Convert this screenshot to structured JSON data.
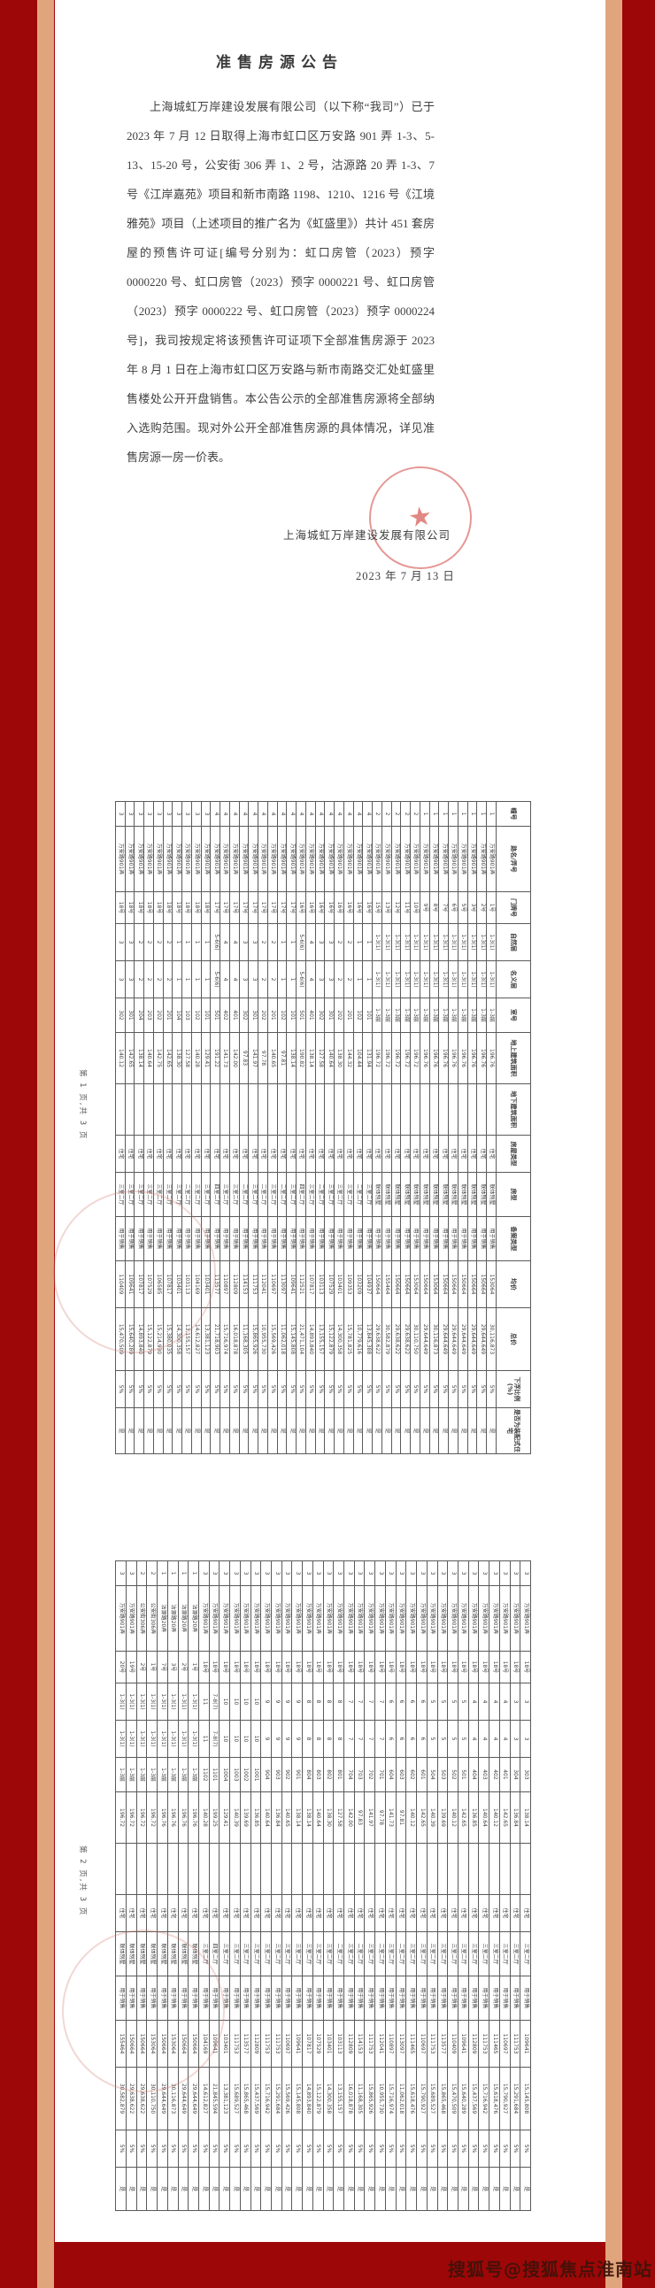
{
  "announcement": {
    "title": "准售房源公告",
    "body": "上海城虹万岸建设发展有限公司（以下称“我司”）已于 2023 年 7 月 12 日取得上海市虹口区万安路 901 弄 1-3、5-13、15-20 号，公安街 306 弄 1、2 号，沽源路 20 弄 1-3、7 号《江岸嘉苑》项目和新市南路 1198、1210、1216 号《江境雅苑》项目（上述项目的推广名为《虹盛里》）共计 451 套房屋的预售许可证[编号分别为：虹口房管（2023）预字 0000220 号、虹口房管（2023）预字 0000221 号、虹口房管（2023）预字 0000222 号、虹口房管（2023）预字 0000224 号]，我司按规定将该预售许可证项下全部准售房源于 2023 年 8 月 1 日在上海市虹口区万安路与新市南路交汇处虹盛里售楼处公开开盘销售。本公告公示的全部准售房源将全部纳入选购范围。现对外公开全部准售房源的具体情况，详见准售房源一房一价表。",
    "company": "上海城虹万岸建设发展有限公司",
    "date": "2023 年 7 月 13 日"
  },
  "footers": {
    "page1": "第 1 页,共 3 页",
    "page2": "第 2 页,共 3 页"
  },
  "watermark": "搜狐号@搜狐焦点淮南站",
  "seal_star": "★",
  "colors": {
    "background": "#9e0707",
    "side_band": "#e0a57c",
    "page": "#ffffff",
    "text": "#3f3f3f",
    "seal_red": "#d8605a"
  },
  "table_columns": [
    "幢号",
    "路名/弄号",
    "门牌号",
    "自然层",
    "名义层",
    "室号",
    "地上建筑面积",
    "地下建筑面积",
    "房屋类型",
    "房型",
    "备案类型",
    "均价",
    "总价",
    "下浮比例(%)",
    "是否为装配式住宅"
  ],
  "table1_rows": [
    [
      "1",
      "万安路901弄",
      "1号",
      "1-3(1)",
      "1-3(1)",
      "1-3层",
      "196.76",
      "",
      "住宅",
      "联体别墅",
      "用于销售",
      "153064",
      "30,116,873",
      "5%",
      "是"
    ],
    [
      "1",
      "万安路901弄",
      "2号",
      "1-3(1)",
      "1-3(1)",
      "1-3层",
      "196.76",
      "",
      "住宅",
      "联体别墅",
      "用于销售",
      "150664",
      "29,644,649",
      "5%",
      "是"
    ],
    [
      "1",
      "万安路901弄",
      "3号",
      "1-3(1)",
      "1-3(1)",
      "1-3层",
      "196.76",
      "",
      "住宅",
      "联体别墅",
      "用于销售",
      "150664",
      "29,644,649",
      "5%",
      "是"
    ],
    [
      "1",
      "万安路901弄",
      "5号",
      "1-3(1)",
      "1-3(1)",
      "1-3层",
      "196.76",
      "",
      "住宅",
      "联体别墅",
      "用于销售",
      "150664",
      "29,644,649",
      "5%",
      "是"
    ],
    [
      "1",
      "万安路901弄",
      "6号",
      "1-3(1)",
      "1-3(1)",
      "1-3层",
      "196.76",
      "",
      "住宅",
      "联体别墅",
      "用于销售",
      "150664",
      "29,644,649",
      "5%",
      "是"
    ],
    [
      "1",
      "万安路901弄",
      "7号",
      "1-3(1)",
      "1-3(1)",
      "1-3层",
      "196.76",
      "",
      "住宅",
      "联体别墅",
      "用于销售",
      "150664",
      "29,644,649",
      "5%",
      "是"
    ],
    [
      "1",
      "万安路901弄",
      "8号",
      "1-3(1)",
      "1-3(1)",
      "1-3层",
      "196.76",
      "",
      "住宅",
      "联体别墅",
      "用于销售",
      "153064",
      "30,116,873",
      "5%",
      "是"
    ],
    [
      "1",
      "万安路901弄",
      "9号",
      "1-3(1)",
      "1-3(1)",
      "1-3层",
      "196.76",
      "",
      "住宅",
      "联体别墅",
      "用于销售",
      "150664",
      "29,644,649",
      "5%",
      "是"
    ],
    [
      "2",
      "万安路901弄",
      "10号",
      "1-3(1)",
      "1-3(1)",
      "1-3层",
      "196.72",
      "",
      "住宅",
      "联体别墅",
      "用于销售",
      "153064",
      "30,110,750",
      "5%",
      "是"
    ],
    [
      "2",
      "万安路901弄",
      "11号",
      "1-3(1)",
      "1-3(1)",
      "1-3层",
      "196.72",
      "",
      "住宅",
      "联体别墅",
      "用于销售",
      "150664",
      "29,638,622",
      "5%",
      "是"
    ],
    [
      "2",
      "万安路901弄",
      "12号",
      "1-3(1)",
      "1-3(1)",
      "1-3层",
      "196.72",
      "",
      "住宅",
      "联体别墅",
      "用于销售",
      "150664",
      "29,638,622",
      "5%",
      "是"
    ],
    [
      "2",
      "万安路901弄",
      "13号",
      "1-3(1)",
      "1-3(1)",
      "1-3层",
      "196.72",
      "",
      "住宅",
      "联体别墅",
      "用于销售",
      "155464",
      "30,582,879",
      "5%",
      "是"
    ],
    [
      "2",
      "万安路901弄",
      "15号",
      "1-3(1)",
      "1-3(1)",
      "1-3层",
      "196.72",
      "",
      "住宅",
      "联体别墅",
      "用于销售",
      "150664",
      "29,638,622",
      "5%",
      "是"
    ],
    [
      "4",
      "万安路901弄",
      "16号",
      "1",
      "1",
      "101",
      "131.94",
      "",
      "住宅",
      "三室二厅",
      "用于销售",
      "104937",
      "13,845,388",
      "5%",
      "是"
    ],
    [
      "4",
      "万安路901弄",
      "16号",
      "1",
      "1",
      "102",
      "104.44",
      "",
      "住宅",
      "二室二厅",
      "用于销售",
      "103209",
      "10,779,616",
      "5%",
      "是"
    ],
    [
      "4",
      "万安路901弄",
      "16号",
      "2",
      "2",
      "201",
      "144.32",
      "",
      "住宅",
      "三室二厅",
      "用于销售",
      "109353",
      "15,781,825",
      "5%",
      "是"
    ],
    [
      "4",
      "万安路901弄",
      "16号",
      "2",
      "2",
      "202",
      "138.30",
      "",
      "住宅",
      "三室二厅",
      "用于销售",
      "103401",
      "14,300,358",
      "5%",
      "是"
    ],
    [
      "4",
      "万安路901弄",
      "16号",
      "3",
      "3",
      "301",
      "140.64",
      "",
      "住宅",
      "三室二厅",
      "用于销售",
      "107529",
      "15,122,879",
      "5%",
      "是"
    ],
    [
      "4",
      "万安路901弄",
      "16号",
      "3",
      "3",
      "302",
      "127.58",
      "",
      "住宅",
      "二室二厅",
      "用于销售",
      "103113",
      "13,155,157",
      "5%",
      "是"
    ],
    [
      "4",
      "万安路901弄",
      "16号",
      "4",
      "4",
      "401",
      "138.14",
      "",
      "住宅",
      "三室二厅",
      "用于销售",
      "107817",
      "14,893,840",
      "5%",
      "是"
    ],
    [
      "4",
      "万安路901弄",
      "16号",
      "5-6(6)",
      "5-6(6)",
      "501",
      "190.82",
      "",
      "住宅",
      "四室二厅",
      "用于销售",
      "112521",
      "21,471,104",
      "5%",
      "是"
    ],
    [
      "4",
      "万安路901弄",
      "17号",
      "1",
      "1",
      "101",
      "138.14",
      "",
      "住宅",
      "三室二厅",
      "用于销售",
      "109641",
      "15,145,808",
      "5%",
      "是"
    ],
    [
      "4",
      "万安路901弄",
      "17号",
      "1",
      "1",
      "102",
      "97.81",
      "",
      "住宅",
      "二室二厅",
      "用于销售",
      "113097",
      "11,062,018",
      "5%",
      "是"
    ],
    [
      "4",
      "万安路901弄",
      "17号",
      "2",
      "2",
      "201",
      "140.65",
      "",
      "住宅",
      "三室二厅",
      "用于销售",
      "110697",
      "15,569,426",
      "5%",
      "是"
    ],
    [
      "4",
      "万安路901弄",
      "17号",
      "2",
      "2",
      "202",
      "97.78",
      "",
      "住宅",
      "二室二厅",
      "用于销售",
      "112041",
      "10,955,730",
      "5%",
      "是"
    ],
    [
      "4",
      "万安路901弄",
      "17号",
      "3",
      "3",
      "301",
      "141.97",
      "",
      "住宅",
      "三室二厅",
      "用于销售",
      "111753",
      "15,865,926",
      "5%",
      "是"
    ],
    [
      "4",
      "万安路901弄",
      "17号",
      "3",
      "3",
      "302",
      "97.83",
      "",
      "住宅",
      "二室二厅",
      "用于销售",
      "114153",
      "11,168,305",
      "5%",
      "是"
    ],
    [
      "4",
      "万安路901弄",
      "17号",
      "4",
      "4",
      "401",
      "142.00",
      "",
      "住宅",
      "三室二厅",
      "用于销售",
      "112809",
      "16,018,878",
      "5%",
      "是"
    ],
    [
      "4",
      "万安路901弄",
      "17号",
      "4",
      "4",
      "402",
      "141.73",
      "",
      "住宅",
      "三室二厅",
      "用于销售",
      "110897",
      "15,716,974",
      "5%",
      "是"
    ],
    [
      "4",
      "万安路901弄",
      "17号",
      "5-6(6)",
      "5-6(6)",
      "501",
      "191.22",
      "",
      "住宅",
      "四室二厅",
      "用于销售",
      "113577",
      "21,718,903",
      "5%",
      "是"
    ],
    [
      "3",
      "万安路901弄",
      "18号",
      "1",
      "1",
      "101",
      "129.41",
      "",
      "住宅",
      "三室二厅",
      "用于销售",
      "103401",
      "13,381,123",
      "5%",
      "是"
    ],
    [
      "3",
      "万安路901弄",
      "18号",
      "1",
      "1",
      "102",
      "140.28",
      "",
      "住宅",
      "三室二厅",
      "用于销售",
      "104169",
      "14,612,827",
      "5%",
      "是"
    ],
    [
      "3",
      "万安路901弄",
      "18号",
      "1",
      "1",
      "103",
      "127.58",
      "",
      "住宅",
      "二室二厅",
      "用于销售",
      "103113",
      "13,155,157",
      "5%",
      "是"
    ],
    [
      "3",
      "万安路901弄",
      "18号",
      "1",
      "1",
      "104",
      "138.30",
      "",
      "住宅",
      "三室二厅",
      "用于销售",
      "103401",
      "14,300,358",
      "5%",
      "是"
    ],
    [
      "3",
      "万安路901弄",
      "18号",
      "2",
      "2",
      "201",
      "142.65",
      "",
      "住宅",
      "三室二厅",
      "用于销售",
      "107817",
      "15,380,035",
      "5%",
      "是"
    ],
    [
      "3",
      "万安路901弄",
      "18号",
      "2",
      "2",
      "202",
      "142.75",
      "",
      "住宅",
      "三室二厅",
      "用于销售",
      "106585",
      "15,214,930",
      "5%",
      "是"
    ],
    [
      "3",
      "万安路901弄",
      "18号",
      "2",
      "2",
      "203",
      "140.64",
      "",
      "住宅",
      "三室二厅",
      "用于销售",
      "107529",
      "15,122,879",
      "5%",
      "是"
    ],
    [
      "3",
      "万安路901弄",
      "18号",
      "2",
      "2",
      "204",
      "138.14",
      "",
      "住宅",
      "三室二厅",
      "用于销售",
      "107817",
      "14,893,840",
      "5%",
      "是"
    ],
    [
      "3",
      "万安路901弄",
      "18号",
      "3",
      "3",
      "301",
      "142.65",
      "",
      "住宅",
      "三室二厅",
      "用于销售",
      "109641",
      "15,640,289",
      "5%",
      "是"
    ],
    [
      "3",
      "万安路901弄",
      "18号",
      "3",
      "3",
      "302",
      "140.12",
      "",
      "住宅",
      "三室二厅",
      "用于销售",
      "110409",
      "15,470,509",
      "5%",
      "是"
    ]
  ],
  "table2_rows": [
    [
      "3",
      "万安路901弄",
      "18号",
      "3",
      "3",
      "303",
      "138.14",
      "",
      "住宅",
      "三室二厅",
      "用于销售",
      "109641",
      "15,145,808",
      "5%",
      "是"
    ],
    [
      "3",
      "万安路901弄",
      "18号",
      "3",
      "3",
      "304",
      "136.84",
      "",
      "住宅",
      "三室二厅",
      "用于销售",
      "111753",
      "15,291,684",
      "5%",
      "是"
    ],
    [
      "3",
      "万安路901弄",
      "18号",
      "4",
      "4",
      "401",
      "142.65",
      "",
      "住宅",
      "三室二厅",
      "用于销售",
      "110697",
      "15,790,927",
      "5%",
      "是"
    ],
    [
      "3",
      "万安路901弄",
      "18号",
      "4",
      "4",
      "402",
      "140.12",
      "",
      "住宅",
      "三室二厅",
      "用于销售",
      "111465",
      "15,618,476",
      "5%",
      "是"
    ],
    [
      "3",
      "万安路901弄",
      "18号",
      "4",
      "4",
      "403",
      "140.64",
      "",
      "住宅",
      "三室二厅",
      "用于销售",
      "111753",
      "15,716,942",
      "5%",
      "是"
    ],
    [
      "3",
      "万安路901弄",
      "18号",
      "4",
      "4",
      "404",
      "136.85",
      "",
      "住宅",
      "三室二厅",
      "用于销售",
      "112809",
      "15,437,569",
      "5%",
      "是"
    ],
    [
      "3",
      "万安路901弄",
      "18号",
      "5",
      "5",
      "501",
      "142.65",
      "",
      "住宅",
      "三室二厅",
      "用于销售",
      "109641",
      "15,640,289",
      "5%",
      "是"
    ],
    [
      "3",
      "万安路901弄",
      "18号",
      "5",
      "5",
      "502",
      "140.12",
      "",
      "住宅",
      "三室二厅",
      "用于销售",
      "110409",
      "15,470,509",
      "5%",
      "是"
    ],
    [
      "3",
      "万安路901弄",
      "18号",
      "5",
      "5",
      "503",
      "139.69",
      "",
      "住宅",
      "三室二厅",
      "用于销售",
      "113577",
      "15,865,468",
      "5%",
      "是"
    ],
    [
      "3",
      "万安路901弄",
      "18号",
      "5",
      "5",
      "504",
      "140.39",
      "",
      "住宅",
      "三室二厅",
      "用于销售",
      "111753",
      "15,689,527",
      "5%",
      "是"
    ],
    [
      "3",
      "万安路901弄",
      "18号",
      "6",
      "6",
      "601",
      "142.65",
      "",
      "住宅",
      "三室二厅",
      "用于销售",
      "110697",
      "15,790,927",
      "5%",
      "是"
    ],
    [
      "3",
      "万安路901弄",
      "18号",
      "6",
      "6",
      "602",
      "140.12",
      "",
      "住宅",
      "三室二厅",
      "用于销售",
      "111465",
      "15,618,476",
      "5%",
      "是"
    ],
    [
      "3",
      "万安路901弄",
      "18号",
      "6",
      "6",
      "603",
      "97.81",
      "",
      "住宅",
      "二室二厅",
      "用于销售",
      "113097",
      "11,062,018",
      "5%",
      "是"
    ],
    [
      "3",
      "万安路901弄",
      "18号",
      "6",
      "6",
      "604",
      "141.73",
      "",
      "住宅",
      "三室二厅",
      "用于销售",
      "110897",
      "15,716,974",
      "5%",
      "是"
    ],
    [
      "3",
      "万安路901弄",
      "18号",
      "7",
      "7",
      "701",
      "97.78",
      "",
      "住宅",
      "二室二厅",
      "用于销售",
      "112041",
      "10,955,730",
      "5%",
      "是"
    ],
    [
      "3",
      "万安路901弄",
      "18号",
      "7",
      "7",
      "702",
      "141.97",
      "",
      "住宅",
      "三室二厅",
      "用于销售",
      "111753",
      "15,865,926",
      "5%",
      "是"
    ],
    [
      "3",
      "万安路901弄",
      "18号",
      "7",
      "7",
      "703",
      "97.83",
      "",
      "住宅",
      "二室二厅",
      "用于销售",
      "114153",
      "11,168,305",
      "5%",
      "是"
    ],
    [
      "3",
      "万安路901弄",
      "18号",
      "7",
      "7",
      "704",
      "142.00",
      "",
      "住宅",
      "三室二厅",
      "用于销售",
      "112809",
      "16,018,878",
      "5%",
      "是"
    ],
    [
      "3",
      "万安路901弄",
      "18号",
      "8",
      "8",
      "801",
      "127.58",
      "",
      "住宅",
      "二室二厅",
      "用于销售",
      "103113",
      "13,155,157",
      "5%",
      "是"
    ],
    [
      "3",
      "万安路901弄",
      "18号",
      "8",
      "8",
      "802",
      "138.30",
      "",
      "住宅",
      "三室二厅",
      "用于销售",
      "103401",
      "14,300,358",
      "5%",
      "是"
    ],
    [
      "3",
      "万安路901弄",
      "18号",
      "8",
      "8",
      "803",
      "140.64",
      "",
      "住宅",
      "三室二厅",
      "用于销售",
      "107529",
      "15,122,879",
      "5%",
      "是"
    ],
    [
      "3",
      "万安路901弄",
      "18号",
      "8",
      "8",
      "804",
      "138.14",
      "",
      "住宅",
      "三室二厅",
      "用于销售",
      "107817",
      "14,893,840",
      "5%",
      "是"
    ],
    [
      "3",
      "万安路901弄",
      "18号",
      "9",
      "9",
      "901",
      "138.14",
      "",
      "住宅",
      "三室二厅",
      "用于销售",
      "109641",
      "15,145,808",
      "5%",
      "是"
    ],
    [
      "3",
      "万安路901弄",
      "18号",
      "9",
      "9",
      "902",
      "140.65",
      "",
      "住宅",
      "三室二厅",
      "用于销售",
      "110697",
      "15,569,426",
      "5%",
      "是"
    ],
    [
      "3",
      "万安路901弄",
      "18号",
      "9",
      "9",
      "903",
      "136.84",
      "",
      "住宅",
      "三室二厅",
      "用于销售",
      "111753",
      "15,291,684",
      "5%",
      "是"
    ],
    [
      "3",
      "万安路901弄",
      "18号",
      "9",
      "9",
      "904",
      "140.64",
      "",
      "住宅",
      "三室二厅",
      "用于销售",
      "111753",
      "15,716,942",
      "5%",
      "是"
    ],
    [
      "3",
      "万安路901弄",
      "18号",
      "10",
      "10",
      "1001",
      "136.85",
      "",
      "住宅",
      "三室二厅",
      "用于销售",
      "112809",
      "15,437,569",
      "5%",
      "是"
    ],
    [
      "3",
      "万安路901弄",
      "18号",
      "10",
      "10",
      "1002",
      "139.69",
      "",
      "住宅",
      "三室二厅",
      "用于销售",
      "113577",
      "15,865,468",
      "5%",
      "是"
    ],
    [
      "3",
      "万安路901弄",
      "18号",
      "10",
      "10",
      "1003",
      "140.39",
      "",
      "住宅",
      "三室二厅",
      "用于销售",
      "111753",
      "15,689,527",
      "5%",
      "是"
    ],
    [
      "3",
      "万安路901弄",
      "18号",
      "10",
      "10",
      "1004",
      "129.41",
      "",
      "住宅",
      "三室二厅",
      "用于销售",
      "103401",
      "13,381,123",
      "5%",
      "是"
    ],
    [
      "3",
      "万安路901弄",
      "18号",
      "7-8(7)",
      "7-8(7)",
      "1101",
      "199.25",
      "",
      "住宅",
      "四室二厅",
      "用于销售",
      "109641",
      "21,845,594",
      "5%",
      "是"
    ],
    [
      "3",
      "万安路901弄",
      "18号",
      "11",
      "11",
      "1102",
      "140.28",
      "",
      "住宅",
      "三室二厅",
      "用于销售",
      "104169",
      "14,612,827",
      "5%",
      "是"
    ],
    [
      "1",
      "沽源路20弄",
      "1号",
      "1-3(1)",
      "1-3(1)",
      "1-3层",
      "196.76",
      "",
      "住宅",
      "联体别墅",
      "用于销售",
      "150664",
      "29,644,649",
      "5%",
      "是"
    ],
    [
      "1",
      "沽源路20弄",
      "2号",
      "1-3(1)",
      "1-3(1)",
      "1-3层",
      "196.76",
      "",
      "住宅",
      "联体别墅",
      "用于销售",
      "150664",
      "29,644,649",
      "5%",
      "是"
    ],
    [
      "1",
      "沽源路20弄",
      "3号",
      "1-3(1)",
      "1-3(1)",
      "1-3层",
      "196.76",
      "",
      "住宅",
      "联体别墅",
      "用于销售",
      "153064",
      "30,116,873",
      "5%",
      "是"
    ],
    [
      "1",
      "沽源路20弄",
      "7号",
      "1-3(1)",
      "1-3(1)",
      "1-3层",
      "196.76",
      "",
      "住宅",
      "联体别墅",
      "用于销售",
      "150664",
      "29,644,649",
      "5%",
      "是"
    ],
    [
      "2",
      "公安街306弄",
      "1号",
      "1-3(1)",
      "1-3(1)",
      "1-3层",
      "196.72",
      "",
      "住宅",
      "联体别墅",
      "用于销售",
      "153064",
      "30,110,750",
      "5%",
      "是"
    ],
    [
      "2",
      "公安街306弄",
      "2号",
      "1-3(1)",
      "1-3(1)",
      "1-3层",
      "196.72",
      "",
      "住宅",
      "联体别墅",
      "用于销售",
      "150664",
      "29,638,622",
      "5%",
      "是"
    ],
    [
      "3",
      "万安路901弄",
      "19号",
      "1-3(1)",
      "1-3(1)",
      "1-3层",
      "196.72",
      "",
      "住宅",
      "联体别墅",
      "用于销售",
      "150664",
      "29,638,622",
      "5%",
      "是"
    ],
    [
      "3",
      "万安路901弄",
      "20号",
      "1-3(1)",
      "1-3(1)",
      "1-3层",
      "196.72",
      "",
      "住宅",
      "联体别墅",
      "用于销售",
      "155464",
      "30,582,879",
      "5%",
      "是"
    ]
  ]
}
